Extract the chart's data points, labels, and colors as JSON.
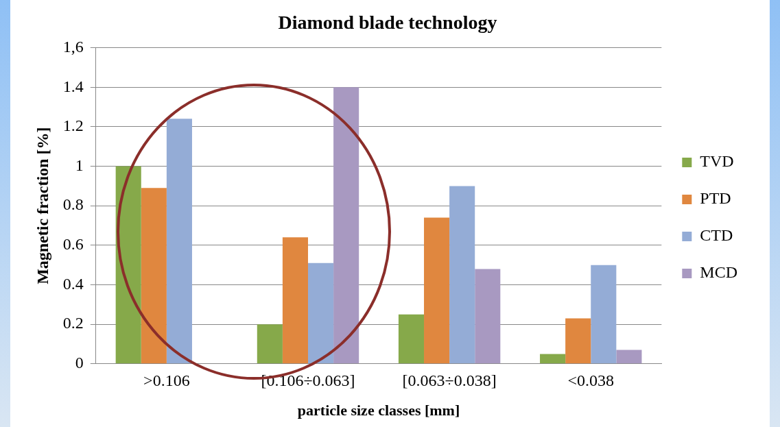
{
  "chart_data": {
    "type": "bar",
    "title": "Diamond blade technology",
    "xlabel": "particle size classes [mm]",
    "ylabel": "Magnetic fraction [%]",
    "categories": [
      ">0.106",
      "[0.106÷0.063]",
      "[0.063÷0.038]",
      "<0.038"
    ],
    "series": [
      {
        "name": "TVD",
        "color": "#86a94a",
        "values": [
          1.0,
          0.2,
          0.25,
          0.05
        ]
      },
      {
        "name": "PTD",
        "color": "#e0873f",
        "values": [
          0.89,
          0.64,
          0.74,
          0.23
        ]
      },
      {
        "name": "CTD",
        "color": "#94acd6",
        "values": [
          1.24,
          0.51,
          0.9,
          0.5
        ]
      },
      {
        "name": "MCD",
        "color": "#a899c1",
        "values": [
          0,
          1.4,
          0.48,
          0.07
        ]
      }
    ],
    "ylim": [
      0,
      1.6
    ],
    "yticks": [
      0,
      0.2,
      0.4,
      0.6,
      0.8,
      1,
      1.2,
      1.4,
      {
        "value": 1.6,
        "label": "1,6"
      }
    ],
    "grid": "y",
    "legend": "right"
  }
}
